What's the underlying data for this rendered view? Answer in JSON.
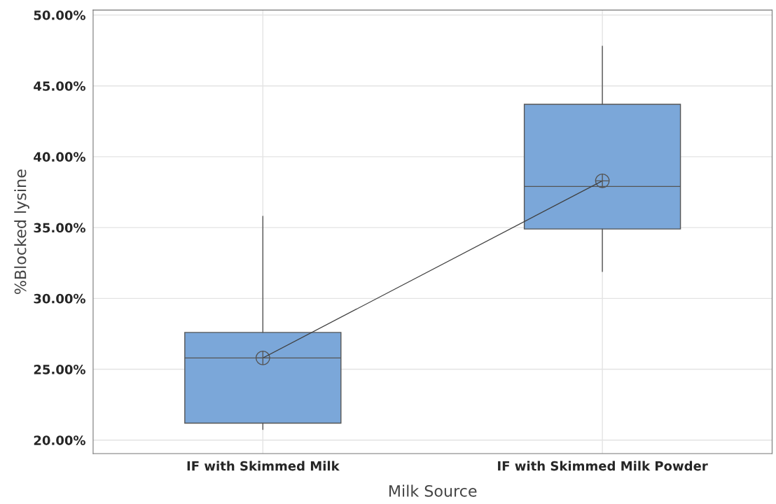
{
  "chart_data": {
    "type": "box",
    "xlabel": "Milk Source",
    "ylabel": "%Blocked lysine",
    "categories": [
      "IF with Skimmed Milk",
      "IF with Skimmed Milk Powder"
    ],
    "boxes": [
      {
        "low": 20.75,
        "q1": 21.2,
        "median": 25.8,
        "q3": 27.6,
        "high": 35.8,
        "mean": 25.8
      },
      {
        "low": 31.9,
        "q1": 34.9,
        "median": 37.9,
        "q3": 43.7,
        "high": 47.8,
        "mean": 38.3
      }
    ],
    "color": "#7ba7d9",
    "series": [
      {
        "type": "line",
        "color": "#404040",
        "values": [
          25.8,
          38.3
        ]
      }
    ],
    "ylim": [
      19.05,
      50.35
    ],
    "yticks": [
      {
        "value": 20,
        "label": "20.00%"
      },
      {
        "value": 25,
        "label": "25.00%"
      },
      {
        "value": 30,
        "label": "30.00%"
      },
      {
        "value": 35,
        "label": "35.00%"
      },
      {
        "value": 40,
        "label": "40.00%"
      },
      {
        "value": 45,
        "label": "45.00%"
      },
      {
        "value": 50,
        "label": "50.00%"
      }
    ],
    "grid": true
  }
}
